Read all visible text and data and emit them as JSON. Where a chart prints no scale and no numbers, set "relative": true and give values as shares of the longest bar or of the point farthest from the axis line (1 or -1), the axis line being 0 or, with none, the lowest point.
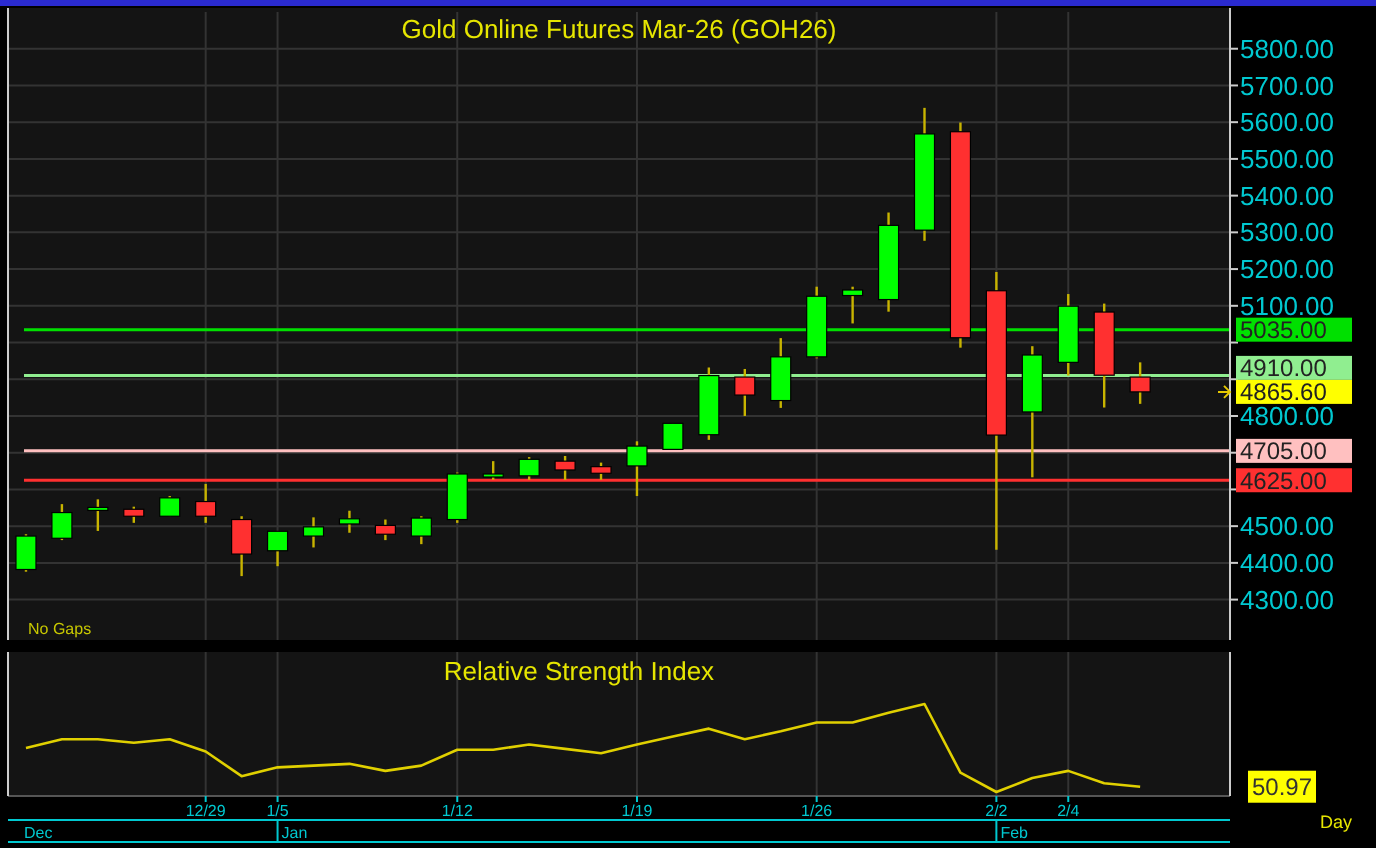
{
  "chart_data": [
    {
      "type": "candlestick",
      "title": "Gold Online Futures Mar-26 (GOH26)",
      "categories": [
        null,
        null,
        null,
        null,
        null,
        null,
        null,
        null,
        null,
        null,
        null,
        null,
        null,
        null,
        null,
        null,
        null,
        null,
        null,
        null,
        null,
        null,
        null,
        null,
        null,
        null,
        null,
        null,
        null,
        null,
        null,
        null
      ],
      "ohlc": [
        [
          4382,
          4478,
          4376,
          4473
        ],
        [
          4467,
          4560,
          4462,
          4537
        ],
        [
          4544,
          4573,
          4487,
          4551
        ],
        [
          4546,
          4553,
          4509,
          4527
        ],
        [
          4527,
          4582,
          4527,
          4577
        ],
        [
          4567,
          4615,
          4509,
          4527
        ],
        [
          4518,
          4527,
          4364,
          4424
        ],
        [
          4433,
          4486,
          4391,
          4486
        ],
        [
          4473,
          4524,
          4442,
          4498
        ],
        [
          4506,
          4542,
          4482,
          4520
        ],
        [
          4502,
          4518,
          4462,
          4478
        ],
        [
          4473,
          4527,
          4451,
          4522
        ],
        [
          4518,
          4646,
          4509,
          4642
        ],
        [
          4635,
          4677,
          4626,
          4642
        ],
        [
          4637,
          4688,
          4626,
          4682
        ],
        [
          4677,
          4691,
          4626,
          4653
        ],
        [
          4662,
          4673,
          4626,
          4644
        ],
        [
          4664,
          4731,
          4582,
          4718
        ],
        [
          4709,
          4780,
          4709,
          4780
        ],
        [
          4749,
          4932,
          4735,
          4910
        ],
        [
          4906,
          4928,
          4800,
          4857
        ],
        [
          4842,
          5012,
          4822,
          4961
        ],
        [
          4961,
          5152,
          4957,
          5126
        ],
        [
          5128,
          5152,
          5052,
          5143
        ],
        [
          5117,
          5354,
          5084,
          5319
        ],
        [
          5306,
          5639,
          5277,
          5568
        ],
        [
          5574,
          5599,
          4986,
          5013
        ],
        [
          5141,
          5192,
          4436,
          4748
        ],
        [
          4811,
          4990,
          4633,
          4966
        ],
        [
          4946,
          5132,
          4910,
          5099
        ],
        [
          5083,
          5106,
          4823,
          4911
        ],
        [
          4906,
          4946,
          4833,
          4865.6
        ]
      ],
      "colors": [
        "#00ff00",
        "#00ff00",
        "#00ff00",
        "#ff3030",
        "#00ff00",
        "#ff3030",
        "#ff3030",
        "#00ff00",
        "#00ff00",
        "#00ff00",
        "#ff3030",
        "#00ff00",
        "#00ff00",
        "#00ff00",
        "#00ff00",
        "#ff3030",
        "#ff3030",
        "#00ff00",
        "#00ff00",
        "#00ff00",
        "#ff3030",
        "#00ff00",
        "#00ff00",
        "#00ff00",
        "#00ff00",
        "#00ff00",
        "#ff3030",
        "#ff3030",
        "#00ff00",
        "#00ff00",
        "#ff3030",
        "#ff3030"
      ],
      "ylim": [
        4190,
        5900
      ],
      "yticks": [
        {
          "value": 4300,
          "label": "4300.00"
        },
        {
          "value": 4400,
          "label": "4400.00"
        },
        {
          "value": 4500,
          "label": "4500.00"
        },
        {
          "value": 4600,
          "label": null
        },
        {
          "value": 4700,
          "label": null
        },
        {
          "value": 4800,
          "label": "4800.00"
        },
        {
          "value": 4900,
          "label": null
        },
        {
          "value": 5000,
          "label": null
        },
        {
          "value": 5100,
          "label": "5100.00"
        },
        {
          "value": 5200,
          "label": "5200.00"
        },
        {
          "value": 5300,
          "label": "5300.00"
        },
        {
          "value": 5400,
          "label": "5400.00"
        },
        {
          "value": 5500,
          "label": "5500.00"
        },
        {
          "value": 5600,
          "label": "5600.00"
        },
        {
          "value": 5700,
          "label": "5700.00"
        },
        {
          "value": 5800,
          "label": "5800.00"
        }
      ],
      "grid": true,
      "tick_labels": "y",
      "ref_lines": [
        {
          "axis": "y",
          "value": 5035,
          "label": "5035.00",
          "color": "#00e000",
          "line_style": "solid"
        },
        {
          "axis": "y",
          "value": 4910,
          "label": "4910.00",
          "color": "#90ee90",
          "line_style": "solid"
        },
        {
          "axis": "y",
          "value": 4705,
          "label": "4705.00",
          "color": "#ffc0c0",
          "line_style": "solid"
        },
        {
          "axis": "y",
          "value": 4625,
          "label": "4625.00",
          "color": "#ff3030",
          "line_style": "solid"
        }
      ],
      "annotations": [
        "No Gaps",
        "4865.60"
      ]
    },
    {
      "type": "line",
      "title": "Relative Strength Index",
      "categories": [
        null,
        null,
        null,
        null,
        null,
        "12/29",
        null,
        "1/5",
        null,
        null,
        null,
        null,
        "1/12",
        null,
        null,
        null,
        null,
        "1/19",
        null,
        null,
        null,
        null,
        "1/26",
        null,
        null,
        null,
        null,
        "2/2",
        null,
        "2/4",
        null,
        null
      ],
      "values": [
        0.5,
        0.6,
        0.6,
        0.56,
        0.6,
        0.46,
        0.18,
        0.28,
        0.3,
        0.32,
        0.24,
        0.3,
        0.48,
        0.48,
        0.54,
        0.49,
        0.44,
        0.54,
        0.63,
        0.72,
        0.6,
        0.69,
        0.79,
        0.79,
        0.9,
        1,
        0.22,
        0,
        0.16,
        0.24,
        0.1,
        0.06
      ],
      "color": "#e0d000",
      "relative": true,
      "grid": "x",
      "tick_labels": "x",
      "annotations": [
        "50.97",
        "Dec",
        "Jan",
        "Feb",
        "Day"
      ]
    }
  ]
}
